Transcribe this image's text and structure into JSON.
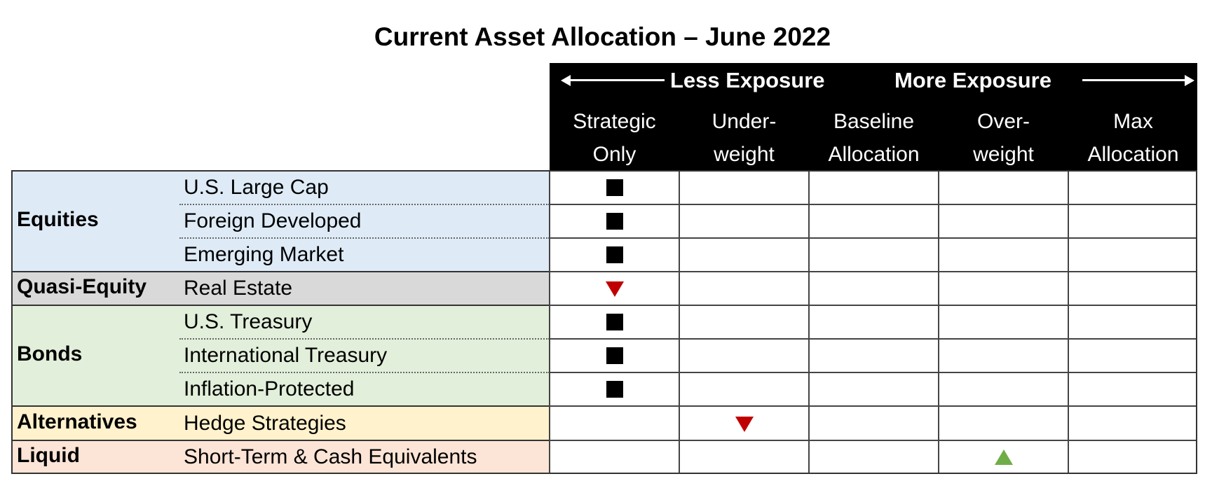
{
  "title": "Current Asset Allocation – June 2022",
  "exposure": {
    "less": "Less Exposure",
    "more": "More Exposure"
  },
  "columns": [
    {
      "line1": "Strategic",
      "line2": "Only"
    },
    {
      "line1": "Under-",
      "line2": "weight"
    },
    {
      "line1": "Baseline",
      "line2": "Allocation"
    },
    {
      "line1": "Over-",
      "line2": "weight"
    },
    {
      "line1": "Max",
      "line2": "Allocation"
    }
  ],
  "groups": [
    {
      "name": "Equities",
      "color": "#deebf7"
    },
    {
      "name": "Quasi-Equity",
      "color": "#d9d9d9"
    },
    {
      "name": "Bonds",
      "color": "#e2efda"
    },
    {
      "name": "Alternatives",
      "color": "#fff2cc"
    },
    {
      "name": "Liquid",
      "color": "#fce4d6"
    }
  ],
  "rows": [
    {
      "label": "U.S. Large Cap",
      "group": "Equities",
      "position": "Strategic Only",
      "marker": "square-icon"
    },
    {
      "label": "Foreign Developed",
      "group": "Equities",
      "position": "Strategic Only",
      "marker": "square-icon"
    },
    {
      "label": "Emerging Market",
      "group": "Equities",
      "position": "Strategic Only",
      "marker": "square-icon"
    },
    {
      "label": "Real Estate",
      "group": "Quasi-Equity",
      "position": "Strategic Only",
      "marker": "down-triangle-icon"
    },
    {
      "label": "U.S. Treasury",
      "group": "Bonds",
      "position": "Strategic Only",
      "marker": "square-icon"
    },
    {
      "label": "International Treasury",
      "group": "Bonds",
      "position": "Strategic Only",
      "marker": "square-icon"
    },
    {
      "label": "Inflation-Protected",
      "group": "Bonds",
      "position": "Strategic Only",
      "marker": "square-icon"
    },
    {
      "label": "Hedge Strategies",
      "group": "Alternatives",
      "position": "Underweight",
      "marker": "down-triangle-icon"
    },
    {
      "label": "Short-Term & Cash Equivalents",
      "group": "Liquid",
      "position": "Overweight",
      "marker": "up-triangle-icon"
    }
  ],
  "colors": {
    "header_bg": "#000000",
    "down_marker": "#c00000",
    "up_marker": "#70ad47"
  }
}
